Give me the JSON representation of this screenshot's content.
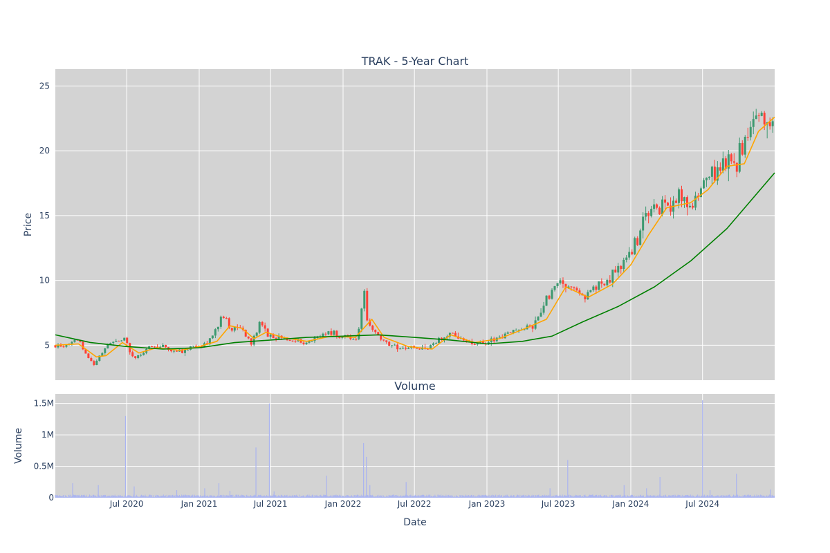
{
  "chart_data": {
    "type": "candlestick",
    "title": "TRAK - 5-Year Chart",
    "x_range": [
      "2020-01-02",
      "2024-12-31"
    ],
    "x_ticks": [
      {
        "date": "2020-07-01",
        "label": "Jul 2020"
      },
      {
        "date": "2021-01-01",
        "label": "Jan 2021"
      },
      {
        "date": "2021-07-01",
        "label": "Jul 2021"
      },
      {
        "date": "2022-01-01",
        "label": "Jan 2022"
      },
      {
        "date": "2022-07-01",
        "label": "Jul 2022"
      },
      {
        "date": "2023-01-01",
        "label": "Jan 2023"
      },
      {
        "date": "2023-07-01",
        "label": "Jul 2023"
      },
      {
        "date": "2024-01-01",
        "label": "Jan 2024"
      },
      {
        "date": "2024-07-01",
        "label": "Jul 2024"
      }
    ],
    "xlabel": "Date",
    "price_panel": {
      "ylabel": "Price",
      "ylim": [
        2.3,
        26.3
      ],
      "y_ticks": [
        5,
        10,
        15,
        20,
        25
      ],
      "up_color": "#3d9970",
      "down_color": "#ff4136",
      "close_path": [
        [
          "2020-01-02",
          5.0
        ],
        [
          "2020-02-01",
          5.0
        ],
        [
          "2020-03-01",
          5.4
        ],
        [
          "2020-03-20",
          4.2
        ],
        [
          "2020-04-10",
          3.6
        ],
        [
          "2020-05-01",
          4.5
        ],
        [
          "2020-06-01",
          5.4
        ],
        [
          "2020-06-25",
          5.6
        ],
        [
          "2020-07-15",
          4.1
        ],
        [
          "2020-08-10",
          4.3
        ],
        [
          "2020-09-01",
          5.0
        ],
        [
          "2020-10-01",
          4.8
        ],
        [
          "2020-11-01",
          4.6
        ],
        [
          "2020-11-20",
          4.3
        ],
        [
          "2020-12-10",
          4.8
        ],
        [
          "2021-01-15",
          5.0
        ],
        [
          "2021-02-01",
          5.5
        ],
        [
          "2021-03-01",
          7.4
        ],
        [
          "2021-03-25",
          6.2
        ],
        [
          "2021-04-20",
          6.4
        ],
        [
          "2021-05-15",
          5.2
        ],
        [
          "2021-06-05",
          6.7
        ],
        [
          "2021-07-01",
          5.8
        ],
        [
          "2021-08-01",
          5.6
        ],
        [
          "2021-09-01",
          5.4
        ],
        [
          "2021-10-01",
          5.3
        ],
        [
          "2021-11-01",
          5.7
        ],
        [
          "2021-12-01",
          5.9
        ],
        [
          "2022-01-15",
          5.6
        ],
        [
          "2022-02-05",
          5.4
        ],
        [
          "2022-02-25",
          9.4
        ],
        [
          "2022-03-05",
          6.5
        ],
        [
          "2022-04-01",
          5.7
        ],
        [
          "2022-05-01",
          5.0
        ],
        [
          "2022-06-01",
          4.7
        ],
        [
          "2022-07-01",
          4.9
        ],
        [
          "2022-08-01",
          4.6
        ],
        [
          "2022-09-01",
          5.4
        ],
        [
          "2022-10-01",
          6.0
        ],
        [
          "2022-11-01",
          5.3
        ],
        [
          "2022-12-01",
          5.2
        ],
        [
          "2023-01-01",
          5.1
        ],
        [
          "2023-02-01",
          5.7
        ],
        [
          "2023-03-01",
          6.1
        ],
        [
          "2023-04-01",
          6.3
        ],
        [
          "2023-05-01",
          6.6
        ],
        [
          "2023-06-01",
          8.5
        ],
        [
          "2023-07-01",
          10.0
        ],
        [
          "2023-08-01",
          9.4
        ],
        [
          "2023-09-01",
          8.6
        ],
        [
          "2023-10-01",
          9.5
        ],
        [
          "2023-11-01",
          9.8
        ],
        [
          "2023-12-01",
          11.0
        ],
        [
          "2024-01-01",
          12.0
        ],
        [
          "2024-02-01",
          14.8
        ],
        [
          "2024-03-01",
          15.5
        ],
        [
          "2024-04-01",
          16.0
        ],
        [
          "2024-05-01",
          16.5
        ],
        [
          "2024-06-01",
          15.5
        ],
        [
          "2024-07-01",
          17.5
        ],
        [
          "2024-08-01",
          18.5
        ],
        [
          "2024-09-01",
          19.0
        ],
        [
          "2024-10-01",
          19.3
        ],
        [
          "2024-11-01",
          22.5
        ],
        [
          "2024-12-01",
          23.0
        ],
        [
          "2024-12-31",
          21.8
        ]
      ],
      "ma_short": {
        "color": "#ffa500",
        "points": [
          [
            "2020-01-02",
            5.0
          ],
          [
            "2020-03-01",
            5.1
          ],
          [
            "2020-04-15",
            4.1
          ],
          [
            "2020-05-10",
            4.2
          ],
          [
            "2020-06-20",
            5.2
          ],
          [
            "2020-08-01",
            4.4
          ],
          [
            "2020-09-15",
            4.8
          ],
          [
            "2020-11-15",
            4.6
          ],
          [
            "2021-01-01",
            4.9
          ],
          [
            "2021-02-15",
            5.3
          ],
          [
            "2021-03-20",
            6.5
          ],
          [
            "2021-04-20",
            6.3
          ],
          [
            "2021-05-20",
            5.5
          ],
          [
            "2021-06-20",
            6.0
          ],
          [
            "2021-08-01",
            5.6
          ],
          [
            "2021-10-01",
            5.3
          ],
          [
            "2021-12-01",
            5.7
          ],
          [
            "2022-02-01",
            5.6
          ],
          [
            "2022-03-15",
            7.0
          ],
          [
            "2022-04-15",
            5.6
          ],
          [
            "2022-06-15",
            4.9
          ],
          [
            "2022-08-15",
            4.7
          ],
          [
            "2022-10-01",
            5.8
          ],
          [
            "2022-12-01",
            5.2
          ],
          [
            "2023-02-01",
            5.5
          ],
          [
            "2023-04-01",
            6.2
          ],
          [
            "2023-06-01",
            7.0
          ],
          [
            "2023-07-20",
            9.5
          ],
          [
            "2023-09-15",
            8.7
          ],
          [
            "2023-11-15",
            9.7
          ],
          [
            "2024-01-01",
            11.2
          ],
          [
            "2024-02-15",
            13.5
          ],
          [
            "2024-04-01",
            15.6
          ],
          [
            "2024-06-01",
            16.0
          ],
          [
            "2024-07-15",
            17.0
          ],
          [
            "2024-09-01",
            18.8
          ],
          [
            "2024-10-15",
            19.0
          ],
          [
            "2024-11-20",
            21.5
          ],
          [
            "2024-12-31",
            22.6
          ]
        ]
      },
      "ma_long": {
        "color": "#008000",
        "points": [
          [
            "2020-01-02",
            5.8
          ],
          [
            "2020-04-01",
            5.2
          ],
          [
            "2020-07-01",
            4.9
          ],
          [
            "2020-10-01",
            4.7
          ],
          [
            "2021-01-01",
            4.8
          ],
          [
            "2021-04-01",
            5.2
          ],
          [
            "2021-07-01",
            5.4
          ],
          [
            "2021-10-01",
            5.6
          ],
          [
            "2022-01-01",
            5.7
          ],
          [
            "2022-04-01",
            5.8
          ],
          [
            "2022-07-01",
            5.6
          ],
          [
            "2022-10-01",
            5.4
          ],
          [
            "2023-01-01",
            5.1
          ],
          [
            "2023-04-01",
            5.3
          ],
          [
            "2023-06-15",
            5.7
          ],
          [
            "2023-09-01",
            6.8
          ],
          [
            "2023-12-01",
            8.0
          ],
          [
            "2024-03-01",
            9.5
          ],
          [
            "2024-06-01",
            11.5
          ],
          [
            "2024-09-01",
            14.0
          ],
          [
            "2024-12-31",
            18.3
          ]
        ]
      }
    },
    "volume_panel": {
      "title": "Volume",
      "ylabel": "Volume",
      "ylim": [
        0,
        1650000
      ],
      "y_ticks": [
        {
          "value": 0,
          "label": "0"
        },
        {
          "value": 500000,
          "label": "0.5M"
        },
        {
          "value": 1000000,
          "label": "1M"
        },
        {
          "value": 1500000,
          "label": "1.5M"
        }
      ],
      "bar_color": "#aab4f0",
      "spikes": [
        [
          "2020-02-15",
          230000
        ],
        [
          "2020-04-20",
          200000
        ],
        [
          "2020-06-28",
          1300000
        ],
        [
          "2020-07-20",
          180000
        ],
        [
          "2020-11-05",
          120000
        ],
        [
          "2021-01-15",
          150000
        ],
        [
          "2021-02-20",
          230000
        ],
        [
          "2021-03-20",
          110000
        ],
        [
          "2021-05-25",
          800000
        ],
        [
          "2021-06-28",
          1500000
        ],
        [
          "2021-07-10",
          100000
        ],
        [
          "2021-11-20",
          350000
        ],
        [
          "2022-02-22",
          870000
        ],
        [
          "2022-03-01",
          650000
        ],
        [
          "2022-03-10",
          200000
        ],
        [
          "2022-06-10",
          250000
        ],
        [
          "2023-06-10",
          150000
        ],
        [
          "2023-07-25",
          600000
        ],
        [
          "2023-12-15",
          200000
        ],
        [
          "2024-02-10",
          150000
        ],
        [
          "2024-03-15",
          330000
        ],
        [
          "2024-07-01",
          1550000
        ],
        [
          "2024-07-20",
          120000
        ],
        [
          "2024-09-25",
          380000
        ],
        [
          "2024-12-20",
          130000
        ]
      ]
    },
    "grid": true,
    "plot_bgcolor": "#d3d3d3",
    "legend": "none"
  }
}
